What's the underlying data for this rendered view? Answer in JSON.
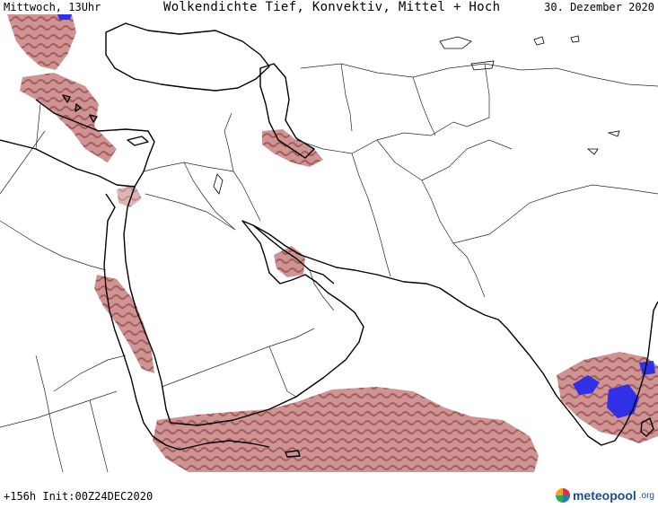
{
  "header": {
    "day": "Mittwoch, 13Uhr",
    "title": "Wolkendichte  Tief, Konvektiv, Mittel + Hoch",
    "date": "30. Dezember 2020"
  },
  "footer": {
    "run": "+156h Init:00Z24DEC2020",
    "brand_name": "meteopool",
    "brand_tld": ".org"
  },
  "map": {
    "region": "Middle East / South Asia",
    "colors": {
      "cloud_cover": "#b25f5f",
      "cloud_dense": "#8e3a3a",
      "convective": "#3030e6",
      "coastline": "#000000",
      "borders": "#000000",
      "background": "#ffffff"
    }
  }
}
